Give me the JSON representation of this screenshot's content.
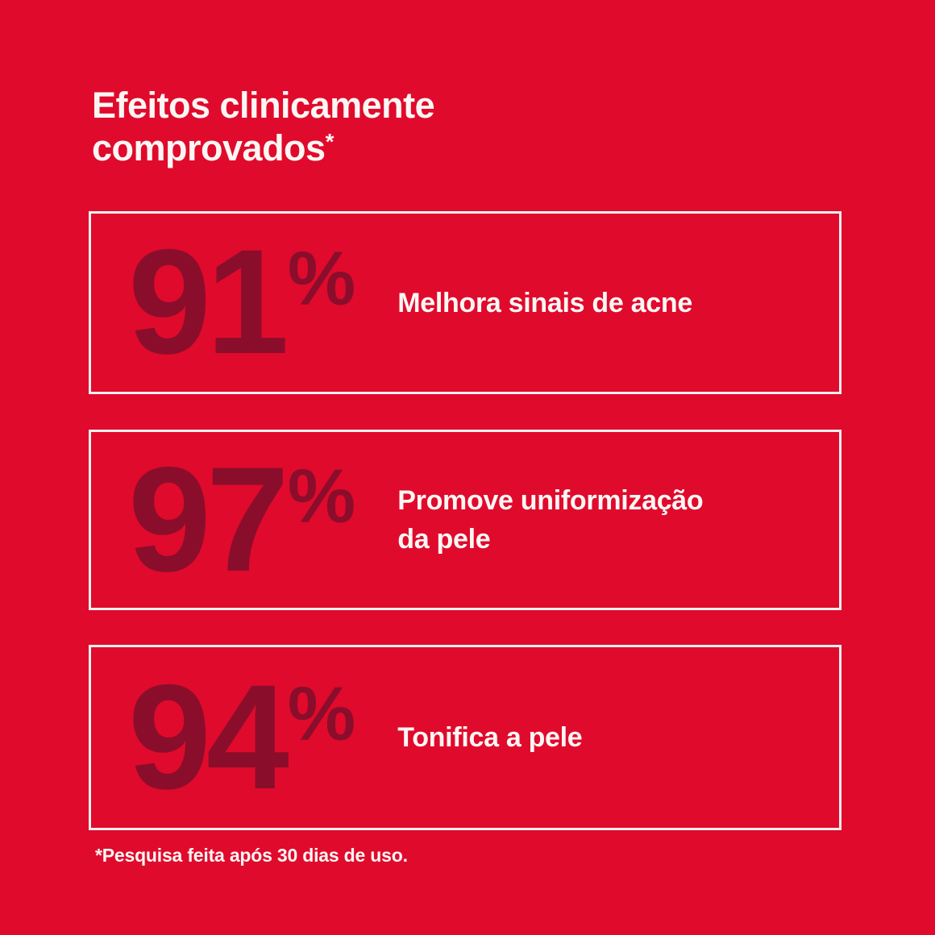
{
  "colors": {
    "background": "#E00A2C",
    "number": "#8A0E2B",
    "text": "#FBF6F4",
    "box_border": "#F7F0EF"
  },
  "header": {
    "title_line1": "Efeitos clinicamente",
    "title_line2": "comprovados",
    "asterisk": "*"
  },
  "stats": [
    {
      "value": "91",
      "unit": "%",
      "label_line1": "Melhora sinais de acne",
      "label_line2": ""
    },
    {
      "value": "97",
      "unit": "%",
      "label_line1": "Promove uniformização",
      "label_line2": "da pele"
    },
    {
      "value": "94",
      "unit": "%",
      "label_line1": "Tonifica a pele",
      "label_line2": ""
    }
  ],
  "footnote": "*Pesquisa feita após 30 dias de uso."
}
